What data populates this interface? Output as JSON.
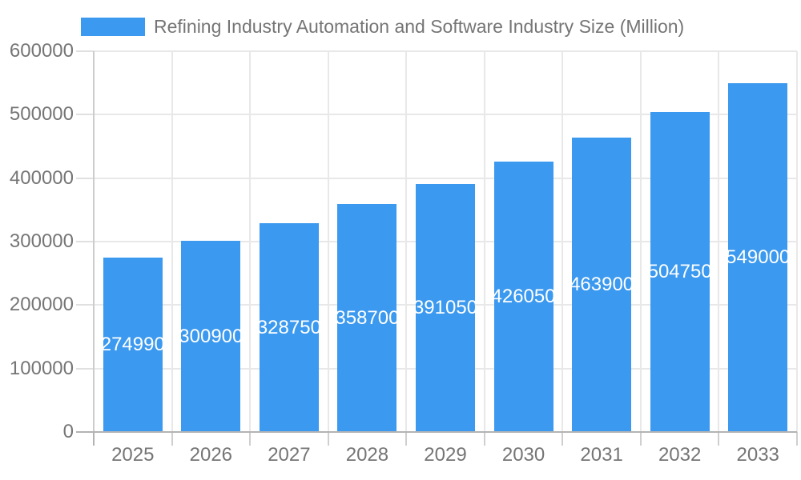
{
  "legend": {
    "label": "Refining Industry Automation and Software Industry Size (Million)"
  },
  "chart_data": {
    "type": "bar",
    "title": "Refining Industry Automation and Software Industry Size (Million)",
    "legend_position": "top",
    "categories": [
      "2025",
      "2026",
      "2027",
      "2028",
      "2029",
      "2030",
      "2031",
      "2032",
      "2033"
    ],
    "series": [
      {
        "name": "Refining Industry Automation and Software Industry Size (Million)",
        "values": [
          274990,
          300900,
          328750,
          358700,
          391050,
          426050,
          463900,
          504750,
          549000
        ]
      }
    ],
    "value_labels": [
      "274990",
      "300900",
      "328750",
      "358700",
      "391050",
      "426050",
      "463900",
      "504750",
      "549000"
    ],
    "xlabel": "",
    "ylabel": "",
    "ylim": [
      0,
      600000
    ],
    "y_ticks": [
      0,
      100000,
      200000,
      300000,
      400000,
      500000,
      600000
    ],
    "y_tick_labels": [
      "0",
      "100000",
      "200000",
      "300000",
      "400000",
      "500000",
      "600000"
    ],
    "grid": "horizontal-and-vertical",
    "value_labels_shown": true
  },
  "colors": {
    "bar": "#3b99ef",
    "title_text": "#757575",
    "axis_text": "#757575",
    "value_label_text": "#ffffff",
    "gridline": "#e8e8e8",
    "left_axis_line": "#cccccc",
    "axis_line": "#b3b3b3",
    "minor_tick": "#cfcfcf",
    "y_tick": "#e0e0e0",
    "background": "#ffffff"
  }
}
